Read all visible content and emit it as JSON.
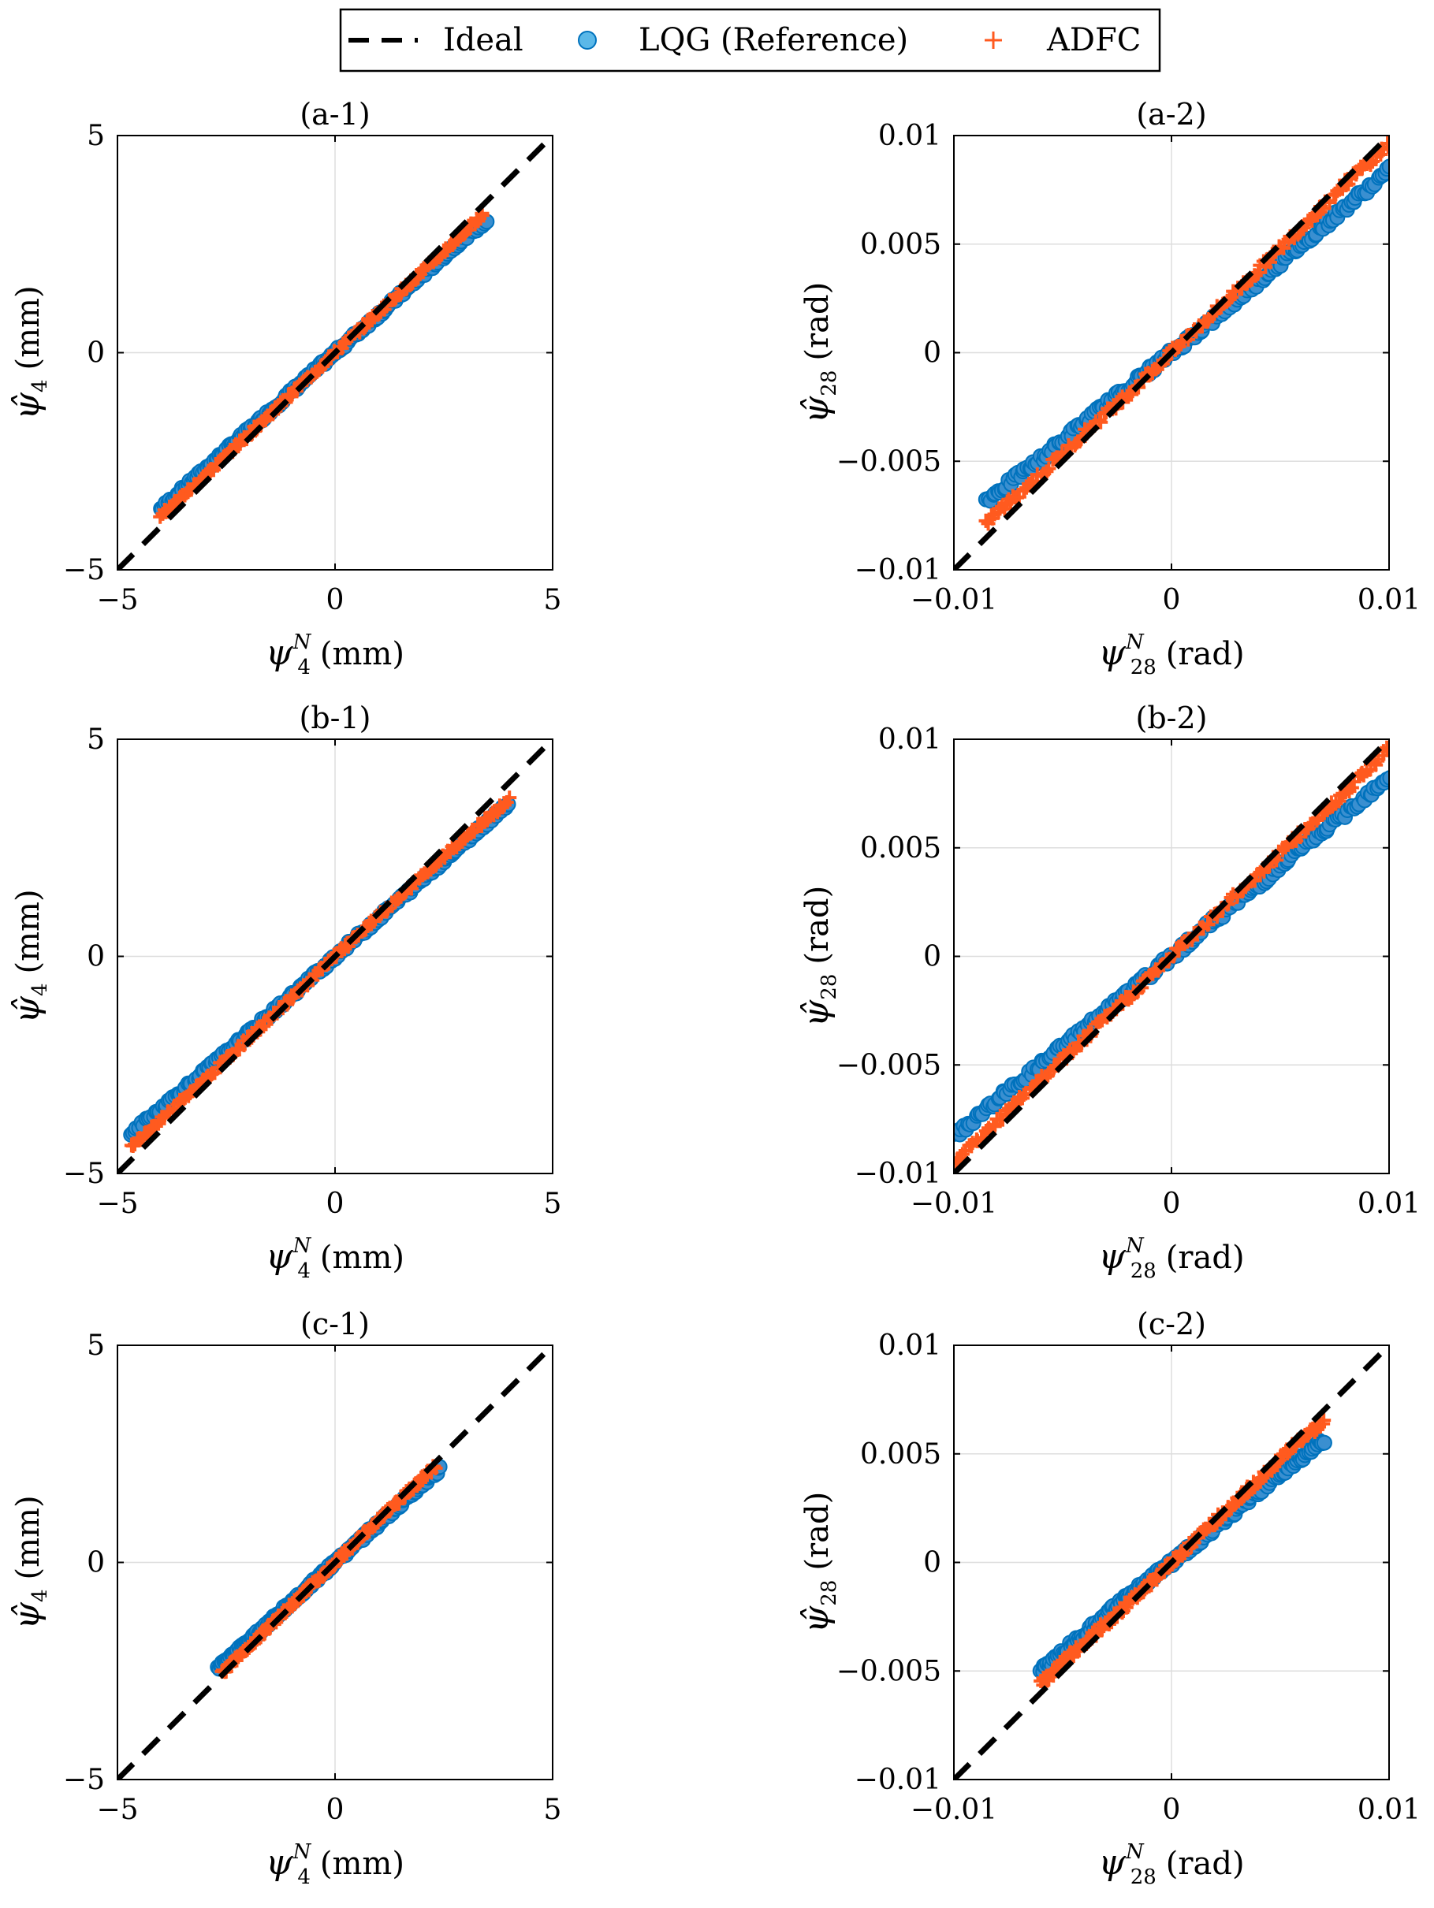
{
  "legend": {
    "entries": [
      {
        "label": "Ideal",
        "marker": "dashed-line",
        "color": "#000000"
      },
      {
        "label": "LQG (Reference)",
        "marker": "filled-circle",
        "color": "#0072BD",
        "fill": "#5BB8E8"
      },
      {
        "label": "ADFC",
        "marker": "plus",
        "color": "#FF5A1F"
      }
    ]
  },
  "axis_texts": {
    "x_left": {
      "sym": "ψ",
      "sup": "N",
      "sub": "4",
      "unit": "(mm)"
    },
    "y_left": {
      "sym": "ψ̂",
      "sub": "4",
      "unit": "(mm)"
    },
    "x_right": {
      "sym": "ψ",
      "sup": "N",
      "sub": "28",
      "unit": "(rad)"
    },
    "y_right": {
      "sym": "ψ̂",
      "sub": "28",
      "unit": "(rad)"
    }
  },
  "colors": {
    "lqg": "#0072BD",
    "adfc": "#FF5A1F",
    "ideal": "#000000",
    "grid": "#DDDDDD"
  },
  "chart_data": [
    {
      "type": "scatter",
      "title": "(a-1)",
      "xlim": [
        -5,
        5
      ],
      "ylim": [
        -5,
        5
      ],
      "xticks": [
        "−5",
        "0",
        "5"
      ],
      "yticks": [
        "−5",
        "0",
        "5"
      ],
      "grid": true,
      "legend": "top-center",
      "series": [
        {
          "name": "Ideal",
          "type": "line",
          "x": [
            -5,
            5
          ],
          "y": [
            -5,
            5
          ]
        },
        {
          "name": "LQG (Reference)",
          "x": [
            -4.0,
            -3.0,
            -2.0,
            -1.0,
            0.0,
            1.0,
            2.0,
            3.0,
            3.5
          ],
          "y": [
            -3.6,
            -2.7,
            -1.8,
            -0.9,
            0.0,
            0.88,
            1.78,
            2.68,
            3.05
          ]
        },
        {
          "name": "ADFC",
          "x": [
            -4.0,
            -3.0,
            -2.0,
            -1.0,
            0.0,
            1.0,
            2.0,
            3.0,
            3.4
          ],
          "y": [
            -3.75,
            -2.85,
            -1.9,
            -0.95,
            0.0,
            0.93,
            1.86,
            2.8,
            3.2
          ]
        }
      ]
    },
    {
      "type": "scatter",
      "title": "(a-2)",
      "xlim": [
        -0.01,
        0.01
      ],
      "ylim": [
        -0.01,
        0.01
      ],
      "xticks": [
        "−0.01",
        "0",
        "0.01"
      ],
      "yticks": [
        "−0.01",
        "−0.005",
        "0",
        "0.005",
        "0.01"
      ],
      "grid": true,
      "series": [
        {
          "name": "Ideal",
          "type": "line",
          "x": [
            -0.01,
            0.01
          ],
          "y": [
            -0.01,
            0.01
          ]
        },
        {
          "name": "LQG (Reference)",
          "x": [
            -0.0085,
            -0.006,
            -0.004,
            -0.002,
            0.0,
            0.002,
            0.004,
            0.006,
            0.008,
            0.01
          ],
          "y": [
            -0.0068,
            -0.0049,
            -0.0032,
            -0.0016,
            0.0,
            0.0016,
            0.0033,
            0.005,
            0.0067,
            0.0084
          ]
        },
        {
          "name": "ADFC",
          "x": [
            -0.0085,
            -0.006,
            -0.004,
            -0.002,
            0.0,
            0.002,
            0.004,
            0.006,
            0.008,
            0.01
          ],
          "y": [
            -0.0078,
            -0.0056,
            -0.0037,
            -0.0019,
            0.0,
            0.0019,
            0.0038,
            0.0058,
            0.0078,
            0.0096
          ]
        }
      ]
    },
    {
      "type": "scatter",
      "title": "(b-1)",
      "xlim": [
        -5,
        5
      ],
      "ylim": [
        -5,
        5
      ],
      "xticks": [
        "−5",
        "0",
        "5"
      ],
      "yticks": [
        "−5",
        "0",
        "5"
      ],
      "grid": true,
      "series": [
        {
          "name": "Ideal",
          "type": "line",
          "x": [
            -5,
            5
          ],
          "y": [
            -5,
            5
          ]
        },
        {
          "name": "LQG (Reference)",
          "x": [
            -4.7,
            -3.0,
            -2.0,
            -1.0,
            0.0,
            1.0,
            2.0,
            3.0,
            4.0
          ],
          "y": [
            -4.1,
            -2.65,
            -1.78,
            -0.9,
            0.0,
            0.88,
            1.77,
            2.65,
            3.55
          ]
        },
        {
          "name": "ADFC",
          "x": [
            -4.7,
            -3.0,
            -2.0,
            -1.0,
            0.0,
            1.0,
            2.0,
            3.0,
            4.0
          ],
          "y": [
            -4.4,
            -2.85,
            -1.9,
            -0.96,
            0.0,
            0.92,
            1.84,
            2.75,
            3.6
          ]
        }
      ]
    },
    {
      "type": "scatter",
      "title": "(b-2)",
      "xlim": [
        -0.01,
        0.01
      ],
      "ylim": [
        -0.01,
        0.01
      ],
      "xticks": [
        "−0.01",
        "0",
        "0.01"
      ],
      "yticks": [
        "−0.01",
        "−0.005",
        "0",
        "0.005",
        "0.01"
      ],
      "grid": true,
      "series": [
        {
          "name": "Ideal",
          "type": "line",
          "x": [
            -0.01,
            0.01
          ],
          "y": [
            -0.01,
            0.01
          ]
        },
        {
          "name": "LQG (Reference)",
          "x": [
            -0.01,
            -0.008,
            -0.006,
            -0.004,
            -0.002,
            0.0,
            0.002,
            0.004,
            0.006,
            0.008,
            0.01
          ],
          "y": [
            -0.0083,
            -0.0066,
            -0.005,
            -0.0033,
            -0.0017,
            0.0,
            0.0017,
            0.0033,
            0.005,
            0.0066,
            0.0083
          ]
        },
        {
          "name": "ADFC",
          "x": [
            -0.01,
            -0.008,
            -0.006,
            -0.004,
            -0.002,
            0.0,
            0.002,
            0.004,
            0.006,
            0.008,
            0.01
          ],
          "y": [
            -0.0095,
            -0.0076,
            -0.0057,
            -0.0038,
            -0.0019,
            0.0,
            0.0019,
            0.0038,
            0.0057,
            0.0076,
            0.0096
          ]
        }
      ]
    },
    {
      "type": "scatter",
      "title": "(c-1)",
      "xlim": [
        -5,
        5
      ],
      "ylim": [
        -5,
        5
      ],
      "xticks": [
        "−5",
        "0",
        "5"
      ],
      "yticks": [
        "−5",
        "0",
        "5"
      ],
      "grid": true,
      "series": [
        {
          "name": "Ideal",
          "type": "line",
          "x": [
            -5,
            5
          ],
          "y": [
            -5,
            5
          ]
        },
        {
          "name": "LQG (Reference)",
          "x": [
            -2.7,
            -2.0,
            -1.0,
            0.0,
            1.0,
            2.0,
            2.4
          ],
          "y": [
            -2.45,
            -1.82,
            -0.92,
            0.0,
            0.9,
            1.8,
            2.15
          ]
        },
        {
          "name": "ADFC",
          "x": [
            -2.6,
            -2.0,
            -1.0,
            0.0,
            1.0,
            2.0,
            2.3
          ],
          "y": [
            -2.55,
            -1.95,
            -0.98,
            0.0,
            0.97,
            1.93,
            2.2
          ]
        }
      ]
    },
    {
      "type": "scatter",
      "title": "(c-2)",
      "xlim": [
        -0.01,
        0.01
      ],
      "ylim": [
        -0.01,
        0.01
      ],
      "xticks": [
        "−0.01",
        "0",
        "0.01"
      ],
      "yticks": [
        "−0.01",
        "−0.005",
        "0",
        "0.005",
        "0.01"
      ],
      "grid": true,
      "series": [
        {
          "name": "Ideal",
          "type": "line",
          "x": [
            -0.01,
            0.01
          ],
          "y": [
            -0.01,
            0.01
          ]
        },
        {
          "name": "LQG (Reference)",
          "x": [
            -0.006,
            -0.004,
            -0.002,
            0.0,
            0.002,
            0.004,
            0.006,
            0.007
          ],
          "y": [
            -0.005,
            -0.0033,
            -0.0016,
            0.0,
            0.0016,
            0.0033,
            0.0049,
            0.0056
          ]
        },
        {
          "name": "ADFC",
          "x": [
            -0.006,
            -0.004,
            -0.002,
            0.0,
            0.002,
            0.004,
            0.006,
            0.007
          ],
          "y": [
            -0.0056,
            -0.0037,
            -0.0019,
            0.0,
            0.0019,
            0.0038,
            0.0057,
            0.0064
          ]
        }
      ]
    }
  ]
}
